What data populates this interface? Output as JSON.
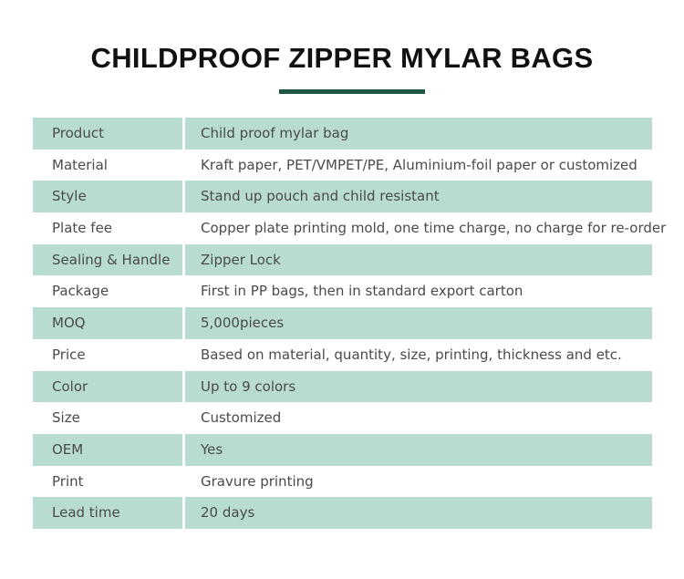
{
  "title": "CHILDPROOF ZIPPER MYLAR BAGS",
  "table": {
    "rows": [
      [
        "Product",
        "Child proof mylar bag"
      ],
      [
        "Material",
        "Kraft paper, PET/VMPET/PE, Aluminium-foil paper or customized"
      ],
      [
        "Style",
        "Stand up pouch and child resistant"
      ],
      [
        "Plate fee",
        "Copper plate printing mold, one time charge, no charge for re-order"
      ],
      [
        "Sealing & Handle",
        "Zipper Lock"
      ],
      [
        "Package",
        "First in PP bags, then in standard export carton"
      ],
      [
        "MOQ",
        "5,000pieces"
      ],
      [
        "Price",
        "Based on material, quantity, size, printing, thickness and etc."
      ],
      [
        "Color",
        "Up to 9 colors"
      ],
      [
        "Size",
        "Customized"
      ],
      [
        "OEM",
        "Yes"
      ],
      [
        "Print",
        "Gravure printing"
      ],
      [
        "Lead time",
        "20 days"
      ]
    ]
  }
}
